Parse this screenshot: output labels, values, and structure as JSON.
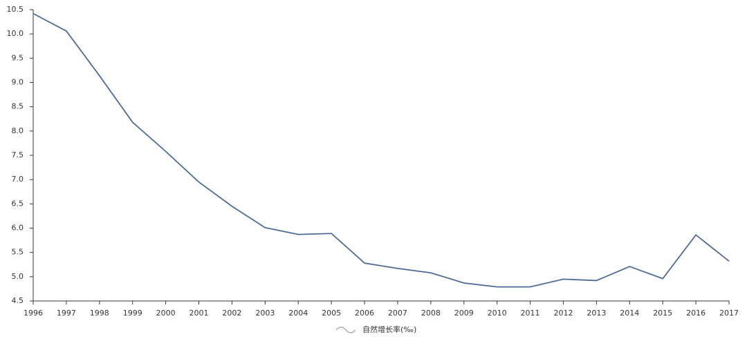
{
  "chart_data": {
    "type": "line",
    "categories": [
      "1996",
      "1997",
      "1998",
      "1999",
      "2000",
      "2001",
      "2002",
      "2003",
      "2004",
      "2005",
      "2006",
      "2007",
      "2008",
      "2009",
      "2010",
      "2011",
      "2012",
      "2013",
      "2014",
      "2015",
      "2016",
      "2017"
    ],
    "series": [
      {
        "name": "自然增长率(‰)",
        "color": "#4a6b96",
        "values": [
          10.42,
          10.06,
          9.14,
          8.18,
          7.58,
          6.95,
          6.45,
          6.01,
          5.87,
          5.89,
          5.28,
          5.17,
          5.08,
          4.87,
          4.79,
          4.79,
          4.95,
          4.92,
          5.21,
          4.96,
          5.86,
          5.32
        ]
      }
    ],
    "ylim": [
      4.5,
      10.5
    ],
    "yticks": [
      4.5,
      {
        "value": 5,
        "label": "5.0"
      },
      5.5,
      {
        "value": 6,
        "label": "6.0"
      },
      6.5,
      {
        "value": 7,
        "label": "7.0"
      },
      7.5,
      {
        "value": 8,
        "label": "8.0"
      },
      8.5,
      {
        "value": 9,
        "label": "9.0"
      },
      9.5,
      {
        "value": 10,
        "label": "10.0"
      },
      10.5
    ],
    "legend": "bottom"
  }
}
